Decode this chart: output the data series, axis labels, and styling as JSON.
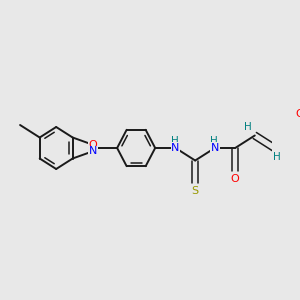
{
  "background_color": "#e8e8e8",
  "bond_color": "#1a1a1a",
  "atom_colors": {
    "N": "#0000ff",
    "O": "#ff0000",
    "S": "#999900",
    "H": "#008080"
  },
  "figsize": [
    3.0,
    3.0
  ],
  "dpi": 100
}
